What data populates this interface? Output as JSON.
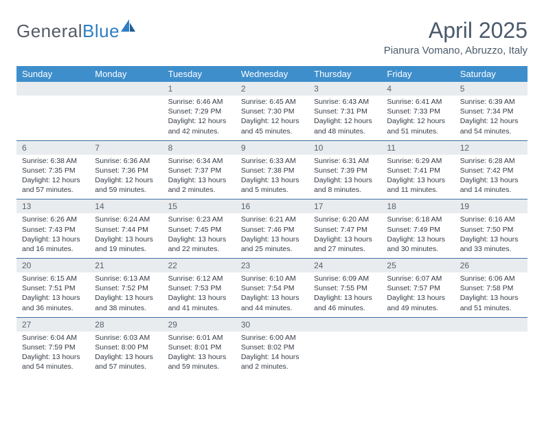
{
  "logo": {
    "word1": "General",
    "word2": "Blue"
  },
  "header": {
    "title": "April 2025",
    "location": "Pianura Vomano, Abruzzo, Italy"
  },
  "colors": {
    "header_bg": "#3f8ecc",
    "header_text": "#ffffff",
    "daynum_bg": "#e9ecef",
    "daynum_text": "#56606b",
    "row_border": "#3f6fa0",
    "logo_gray": "#555c66",
    "logo_blue": "#2f7ec0",
    "title_color": "#4a5a6a",
    "body_text": "#333a44"
  },
  "daysOfWeek": [
    "Sunday",
    "Monday",
    "Tuesday",
    "Wednesday",
    "Thursday",
    "Friday",
    "Saturday"
  ],
  "weeks": [
    [
      {
        "n": "",
        "sr": "",
        "ss": "",
        "dl": ""
      },
      {
        "n": "",
        "sr": "",
        "ss": "",
        "dl": ""
      },
      {
        "n": "1",
        "sr": "Sunrise: 6:46 AM",
        "ss": "Sunset: 7:29 PM",
        "dl": "Daylight: 12 hours and 42 minutes."
      },
      {
        "n": "2",
        "sr": "Sunrise: 6:45 AM",
        "ss": "Sunset: 7:30 PM",
        "dl": "Daylight: 12 hours and 45 minutes."
      },
      {
        "n": "3",
        "sr": "Sunrise: 6:43 AM",
        "ss": "Sunset: 7:31 PM",
        "dl": "Daylight: 12 hours and 48 minutes."
      },
      {
        "n": "4",
        "sr": "Sunrise: 6:41 AM",
        "ss": "Sunset: 7:33 PM",
        "dl": "Daylight: 12 hours and 51 minutes."
      },
      {
        "n": "5",
        "sr": "Sunrise: 6:39 AM",
        "ss": "Sunset: 7:34 PM",
        "dl": "Daylight: 12 hours and 54 minutes."
      }
    ],
    [
      {
        "n": "6",
        "sr": "Sunrise: 6:38 AM",
        "ss": "Sunset: 7:35 PM",
        "dl": "Daylight: 12 hours and 57 minutes."
      },
      {
        "n": "7",
        "sr": "Sunrise: 6:36 AM",
        "ss": "Sunset: 7:36 PM",
        "dl": "Daylight: 12 hours and 59 minutes."
      },
      {
        "n": "8",
        "sr": "Sunrise: 6:34 AM",
        "ss": "Sunset: 7:37 PM",
        "dl": "Daylight: 13 hours and 2 minutes."
      },
      {
        "n": "9",
        "sr": "Sunrise: 6:33 AM",
        "ss": "Sunset: 7:38 PM",
        "dl": "Daylight: 13 hours and 5 minutes."
      },
      {
        "n": "10",
        "sr": "Sunrise: 6:31 AM",
        "ss": "Sunset: 7:39 PM",
        "dl": "Daylight: 13 hours and 8 minutes."
      },
      {
        "n": "11",
        "sr": "Sunrise: 6:29 AM",
        "ss": "Sunset: 7:41 PM",
        "dl": "Daylight: 13 hours and 11 minutes."
      },
      {
        "n": "12",
        "sr": "Sunrise: 6:28 AM",
        "ss": "Sunset: 7:42 PM",
        "dl": "Daylight: 13 hours and 14 minutes."
      }
    ],
    [
      {
        "n": "13",
        "sr": "Sunrise: 6:26 AM",
        "ss": "Sunset: 7:43 PM",
        "dl": "Daylight: 13 hours and 16 minutes."
      },
      {
        "n": "14",
        "sr": "Sunrise: 6:24 AM",
        "ss": "Sunset: 7:44 PM",
        "dl": "Daylight: 13 hours and 19 minutes."
      },
      {
        "n": "15",
        "sr": "Sunrise: 6:23 AM",
        "ss": "Sunset: 7:45 PM",
        "dl": "Daylight: 13 hours and 22 minutes."
      },
      {
        "n": "16",
        "sr": "Sunrise: 6:21 AM",
        "ss": "Sunset: 7:46 PM",
        "dl": "Daylight: 13 hours and 25 minutes."
      },
      {
        "n": "17",
        "sr": "Sunrise: 6:20 AM",
        "ss": "Sunset: 7:47 PM",
        "dl": "Daylight: 13 hours and 27 minutes."
      },
      {
        "n": "18",
        "sr": "Sunrise: 6:18 AM",
        "ss": "Sunset: 7:49 PM",
        "dl": "Daylight: 13 hours and 30 minutes."
      },
      {
        "n": "19",
        "sr": "Sunrise: 6:16 AM",
        "ss": "Sunset: 7:50 PM",
        "dl": "Daylight: 13 hours and 33 minutes."
      }
    ],
    [
      {
        "n": "20",
        "sr": "Sunrise: 6:15 AM",
        "ss": "Sunset: 7:51 PM",
        "dl": "Daylight: 13 hours and 36 minutes."
      },
      {
        "n": "21",
        "sr": "Sunrise: 6:13 AM",
        "ss": "Sunset: 7:52 PM",
        "dl": "Daylight: 13 hours and 38 minutes."
      },
      {
        "n": "22",
        "sr": "Sunrise: 6:12 AM",
        "ss": "Sunset: 7:53 PM",
        "dl": "Daylight: 13 hours and 41 minutes."
      },
      {
        "n": "23",
        "sr": "Sunrise: 6:10 AM",
        "ss": "Sunset: 7:54 PM",
        "dl": "Daylight: 13 hours and 44 minutes."
      },
      {
        "n": "24",
        "sr": "Sunrise: 6:09 AM",
        "ss": "Sunset: 7:55 PM",
        "dl": "Daylight: 13 hours and 46 minutes."
      },
      {
        "n": "25",
        "sr": "Sunrise: 6:07 AM",
        "ss": "Sunset: 7:57 PM",
        "dl": "Daylight: 13 hours and 49 minutes."
      },
      {
        "n": "26",
        "sr": "Sunrise: 6:06 AM",
        "ss": "Sunset: 7:58 PM",
        "dl": "Daylight: 13 hours and 51 minutes."
      }
    ],
    [
      {
        "n": "27",
        "sr": "Sunrise: 6:04 AM",
        "ss": "Sunset: 7:59 PM",
        "dl": "Daylight: 13 hours and 54 minutes."
      },
      {
        "n": "28",
        "sr": "Sunrise: 6:03 AM",
        "ss": "Sunset: 8:00 PM",
        "dl": "Daylight: 13 hours and 57 minutes."
      },
      {
        "n": "29",
        "sr": "Sunrise: 6:01 AM",
        "ss": "Sunset: 8:01 PM",
        "dl": "Daylight: 13 hours and 59 minutes."
      },
      {
        "n": "30",
        "sr": "Sunrise: 6:00 AM",
        "ss": "Sunset: 8:02 PM",
        "dl": "Daylight: 14 hours and 2 minutes."
      },
      {
        "n": "",
        "sr": "",
        "ss": "",
        "dl": ""
      },
      {
        "n": "",
        "sr": "",
        "ss": "",
        "dl": ""
      },
      {
        "n": "",
        "sr": "",
        "ss": "",
        "dl": ""
      }
    ]
  ]
}
